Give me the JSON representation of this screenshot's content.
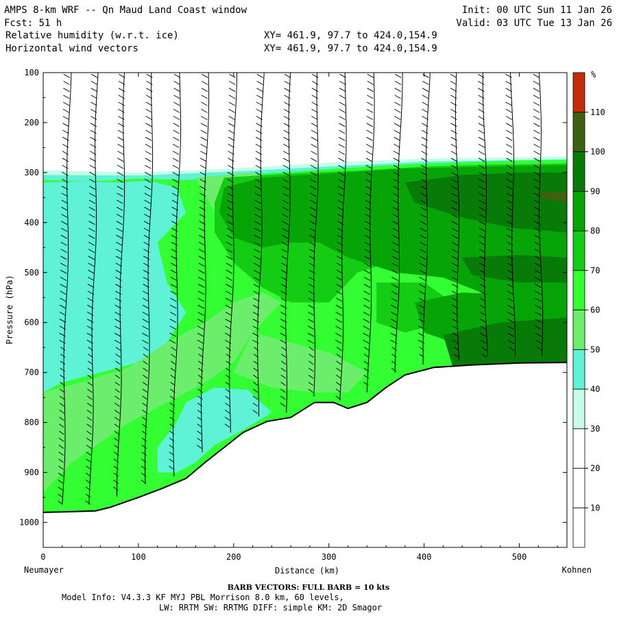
{
  "header": {
    "title": "AMPS 8-km WRF -- Qn Maud Land Coast window",
    "init": "Init: 00 UTC Sun 11 Jan 26",
    "fcst": "Fcst:   51 h",
    "valid": "Valid: 03 UTC Tue 13 Jan 26",
    "field1": "Relative humidity (w.r.t. ice)",
    "field1_xy": "XY= 461.9, 97.7 to 424.0,154.9",
    "field2": "Horizontal wind vectors",
    "field2_xy": "XY= 461.9, 97.7 to 424.0,154.9"
  },
  "footer": {
    "barb": "BARB VECTORS:  FULL BARB = 10 kts",
    "model1": "Model Info: V4.3.3   KF     MYJ PBL  Morrison           8.0 km,  60 levels,",
    "model2": "LW: RRTM SW: RRTMG   DIFF: simple KM: 2D Smagor"
  },
  "chart_data": {
    "type": "heatmap",
    "xlabel": "Distance (km)",
    "ylabel": "Pressure (hPa)",
    "x_left_label": "Neumayer",
    "x_right_label": "Kohnen",
    "xlim": [
      0,
      550
    ],
    "ylim": [
      1050,
      100
    ],
    "x_ticks": [
      0,
      100,
      200,
      300,
      400,
      500
    ],
    "y_ticks": [
      100,
      200,
      300,
      400,
      500,
      600,
      700,
      800,
      900,
      1000
    ],
    "colorbar": {
      "unit": "%",
      "levels": [
        10,
        20,
        30,
        40,
        50,
        60,
        70,
        80,
        90,
        100,
        110
      ],
      "colors": [
        "#ffffff",
        "#ffffff",
        "#ffffff",
        "#c9fbe9",
        "#5ff2d6",
        "#6cee6c",
        "#33ff33",
        "#14cc14",
        "#07a407",
        "#087a08",
        "#3f6010",
        "#c22e0a"
      ]
    },
    "terrain_pressure": [
      [
        0,
        980
      ],
      [
        20,
        979
      ],
      [
        55,
        977
      ],
      [
        70,
        970
      ],
      [
        100,
        950
      ],
      [
        125,
        932
      ],
      [
        150,
        912
      ],
      [
        170,
        880
      ],
      [
        190,
        850
      ],
      [
        210,
        820
      ],
      [
        235,
        798
      ],
      [
        260,
        790
      ],
      [
        285,
        760
      ],
      [
        305,
        760
      ],
      [
        320,
        772
      ],
      [
        340,
        760
      ],
      [
        360,
        730
      ],
      [
        380,
        705
      ],
      [
        410,
        690
      ],
      [
        450,
        685
      ],
      [
        500,
        681
      ],
      [
        550,
        680
      ]
    ],
    "moist_top_pressure": [
      [
        0,
        315
      ],
      [
        50,
        318
      ],
      [
        100,
        312
      ],
      [
        150,
        315
      ],
      [
        200,
        306
      ],
      [
        250,
        300
      ],
      [
        300,
        293
      ],
      [
        350,
        287
      ],
      [
        400,
        282
      ],
      [
        450,
        279
      ],
      [
        500,
        276
      ],
      [
        550,
        275
      ]
    ],
    "rh_bands": [
      {
        "level": 30,
        "top": [
          [
            0,
            295
          ],
          [
            100,
            300
          ],
          [
            200,
            292
          ],
          [
            300,
            280
          ],
          [
            400,
            272
          ],
          [
            550,
            268
          ]
        ]
      },
      {
        "level": 40,
        "top": [
          [
            0,
            305
          ],
          [
            100,
            306
          ],
          [
            200,
            298
          ],
          [
            300,
            288
          ],
          [
            400,
            278
          ],
          [
            550,
            273
          ]
        ]
      }
    ],
    "rh_regions": [
      {
        "rh": 45,
        "points": [
          [
            0,
            320
          ],
          [
            40,
            318
          ],
          [
            80,
            320
          ],
          [
            110,
            316
          ],
          [
            140,
            330
          ],
          [
            150,
            380
          ],
          [
            120,
            440
          ],
          [
            130,
            520
          ],
          [
            150,
            580
          ],
          [
            130,
            640
          ],
          [
            100,
            680
          ],
          [
            60,
            700
          ],
          [
            20,
            720
          ],
          [
            0,
            740
          ]
        ]
      },
      {
        "rh": 45,
        "points": [
          [
            150,
            760
          ],
          [
            180,
            730
          ],
          [
            215,
            735
          ],
          [
            240,
            780
          ],
          [
            210,
            815
          ],
          [
            180,
            845
          ],
          [
            160,
            880
          ],
          [
            140,
            900
          ],
          [
            120,
            900
          ],
          [
            120,
            850
          ],
          [
            140,
            800
          ]
        ]
      },
      {
        "rh": 55,
        "points": [
          [
            0,
            740
          ],
          [
            40,
            720
          ],
          [
            90,
            690
          ],
          [
            130,
            640
          ],
          [
            170,
            600
          ],
          [
            200,
            560
          ],
          [
            230,
            540
          ],
          [
            250,
            560
          ],
          [
            220,
            620
          ],
          [
            200,
            680
          ],
          [
            170,
            720
          ],
          [
            130,
            760
          ],
          [
            90,
            800
          ],
          [
            60,
            840
          ],
          [
            30,
            880
          ],
          [
            10,
            920
          ],
          [
            0,
            940
          ]
        ]
      },
      {
        "rh": 55,
        "points": [
          [
            220,
            620
          ],
          [
            300,
            660
          ],
          [
            340,
            700
          ],
          [
            320,
            740
          ],
          [
            285,
            740
          ],
          [
            240,
            730
          ],
          [
            200,
            700
          ]
        ]
      },
      {
        "rh": 55,
        "points": [
          [
            160,
            310
          ],
          [
            220,
            300
          ],
          [
            250,
            330
          ],
          [
            240,
            400
          ],
          [
            200,
            420
          ],
          [
            180,
            380
          ]
        ]
      },
      {
        "rh": 75,
        "points": [
          [
            190,
            310
          ],
          [
            260,
            302
          ],
          [
            330,
            296
          ],
          [
            400,
            288
          ],
          [
            470,
            284
          ],
          [
            550,
            282
          ],
          [
            550,
            500
          ],
          [
            500,
            520
          ],
          [
            450,
            480
          ],
          [
            380,
            470
          ],
          [
            330,
            500
          ],
          [
            300,
            560
          ],
          [
            260,
            560
          ],
          [
            230,
            530
          ],
          [
            200,
            480
          ],
          [
            180,
            420
          ],
          [
            180,
            360
          ]
        ]
      },
      {
        "rh": 75,
        "points": [
          [
            350,
            520
          ],
          [
            400,
            520
          ],
          [
            430,
            560
          ],
          [
            420,
            600
          ],
          [
            380,
            620
          ],
          [
            350,
            600
          ]
        ]
      },
      {
        "rh": 85,
        "points": [
          [
            190,
            330
          ],
          [
            230,
            310
          ],
          [
            300,
            302
          ],
          [
            380,
            292
          ],
          [
            470,
            288
          ],
          [
            550,
            285
          ],
          [
            550,
            560
          ],
          [
            500,
            580
          ],
          [
            460,
            540
          ],
          [
            420,
            510
          ],
          [
            370,
            500
          ],
          [
            320,
            470
          ],
          [
            290,
            440
          ],
          [
            260,
            440
          ],
          [
            230,
            450
          ],
          [
            200,
            430
          ],
          [
            185,
            380
          ]
        ]
      },
      {
        "rh": 85,
        "points": [
          [
            390,
            560
          ],
          [
            440,
            540
          ],
          [
            500,
            545
          ],
          [
            550,
            550
          ],
          [
            550,
            680
          ],
          [
            500,
            681
          ],
          [
            450,
            685
          ],
          [
            430,
            640
          ],
          [
            400,
            620
          ]
        ]
      },
      {
        "rh": 95,
        "points": [
          [
            380,
            320
          ],
          [
            440,
            305
          ],
          [
            500,
            300
          ],
          [
            550,
            300
          ],
          [
            550,
            420
          ],
          [
            490,
            410
          ],
          [
            440,
            390
          ],
          [
            390,
            360
          ]
        ]
      },
      {
        "rh": 95,
        "points": [
          [
            440,
            470
          ],
          [
            500,
            465
          ],
          [
            550,
            470
          ],
          [
            550,
            520
          ],
          [
            500,
            520
          ],
          [
            450,
            505
          ]
        ]
      },
      {
        "rh": 95,
        "points": [
          [
            420,
            625
          ],
          [
            480,
            600
          ],
          [
            550,
            590
          ],
          [
            550,
            680
          ],
          [
            480,
            683
          ],
          [
            430,
            688
          ]
        ]
      },
      {
        "rh": 105,
        "points": [
          [
            410,
            688
          ],
          [
            470,
            684
          ],
          [
            550,
            679
          ],
          [
            550,
            683
          ],
          [
            470,
            688
          ],
          [
            412,
            693
          ]
        ]
      },
      {
        "rh": 105,
        "points": [
          [
            520,
            340
          ],
          [
            550,
            338
          ],
          [
            550,
            360
          ],
          [
            525,
            352
          ]
        ]
      }
    ]
  }
}
